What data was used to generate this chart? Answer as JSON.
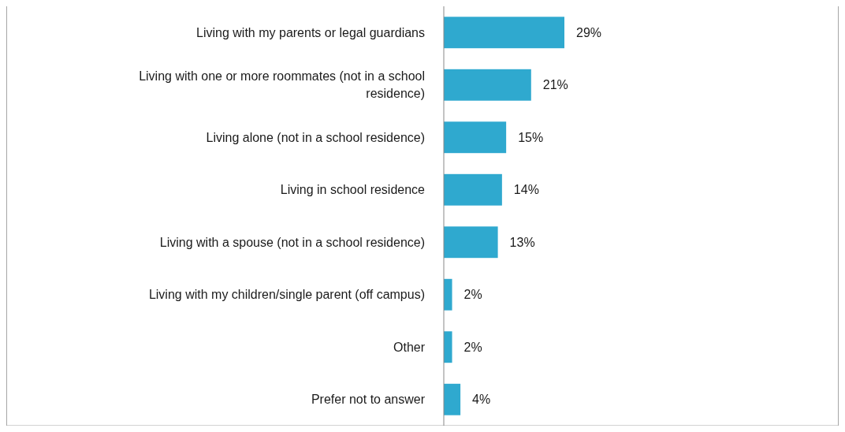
{
  "chart_data": {
    "type": "bar",
    "orientation": "horizontal",
    "categories": [
      "Living with my parents or legal guardians",
      "Living with one or more roommates (not in a school residence)",
      "Living alone (not in a school residence)",
      "Living in school residence",
      "Living with a spouse (not in a school residence)",
      "Living with my children/single parent (off campus)",
      "Other",
      "Prefer not to answer"
    ],
    "values": [
      29,
      21,
      15,
      14,
      13,
      2,
      2,
      4
    ],
    "value_labels": [
      "29%",
      "21%",
      "15%",
      "14%",
      "13%",
      "2%",
      "2%",
      "4%"
    ],
    "color": "#2fa9cf"
  }
}
